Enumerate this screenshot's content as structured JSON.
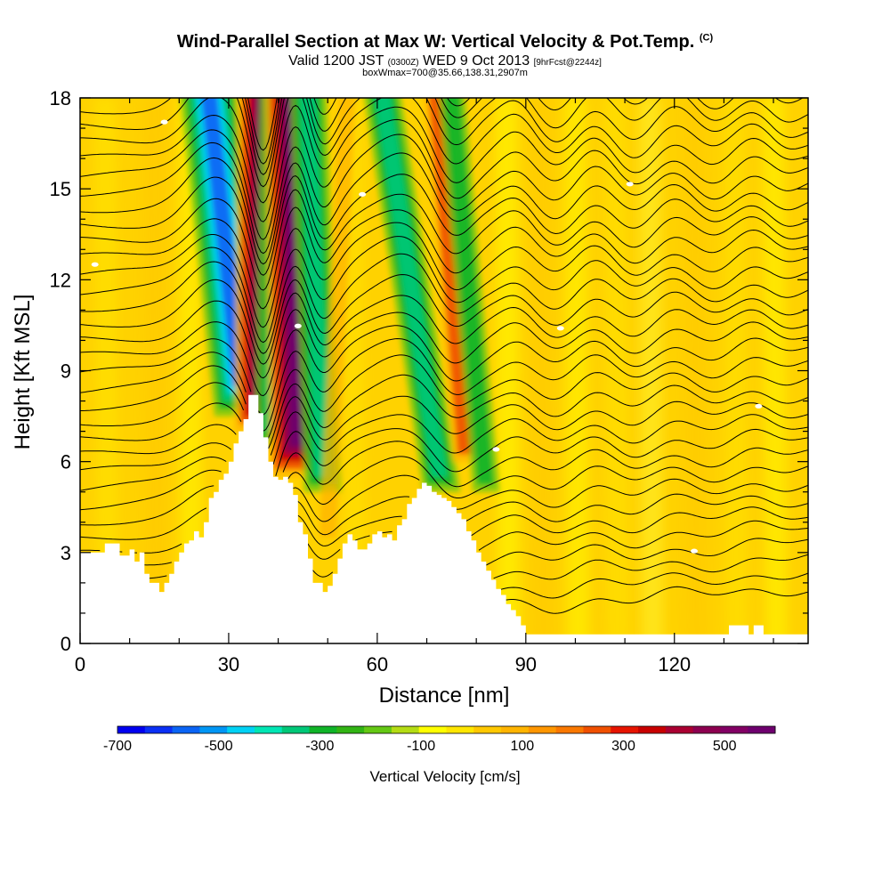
{
  "title": {
    "main": "Wind-Parallel Section at Max W: Vertical Velocity & Pot.Temp.",
    "copyright": "(C)",
    "line2_a": "Valid 1200 JST",
    "line2_b": "(0300Z)",
    "line2_c": "WED 9 Oct 2013",
    "line2_d": "[9hrFcst@2244z]",
    "line3": "boxWmax=700@35.66,138.31,2907m"
  },
  "chart_data": {
    "type": "heatmap",
    "xlabel": "Distance [nm]",
    "ylabel": "Height [Kft MSL]",
    "xlim": [
      0,
      147
    ],
    "ylim": [
      0,
      18
    ],
    "x_ticks": [
      0,
      30,
      60,
      90,
      120
    ],
    "y_ticks": [
      0,
      3,
      6,
      9,
      12,
      15,
      18
    ],
    "field": "Vertical Velocity [cm/s]",
    "contours": "Pot.Temp.",
    "terrain": {
      "x": [
        0,
        4,
        5,
        7,
        8,
        10,
        11,
        12,
        13,
        14,
        16,
        17,
        18,
        19,
        20,
        21,
        22,
        23,
        24,
        25,
        26,
        27,
        28,
        29,
        30,
        31,
        32,
        33,
        34,
        35,
        36,
        37,
        38,
        39,
        40,
        41,
        42,
        43,
        44,
        45,
        46,
        47,
        48,
        49,
        50,
        51,
        52,
        53,
        54,
        55,
        56,
        57,
        58,
        59,
        60,
        61,
        62,
        63,
        64,
        65,
        66,
        67,
        68,
        69,
        70,
        71,
        72,
        73,
        74,
        75,
        76,
        77,
        78,
        79,
        80,
        81,
        82,
        83,
        84,
        85,
        86,
        87,
        88,
        89,
        90,
        92,
        95,
        100,
        105,
        110,
        115,
        120,
        125,
        128,
        130,
        131,
        132,
        134,
        135,
        136,
        137,
        138,
        140,
        145,
        147
      ],
      "y": [
        3.0,
        3.0,
        3.3,
        3.3,
        2.9,
        3.1,
        2.7,
        3.0,
        2.3,
        2.0,
        1.7,
        2.0,
        2.3,
        2.7,
        3.0,
        3.3,
        3.4,
        3.7,
        3.5,
        4.0,
        4.8,
        5.0,
        5.4,
        5.6,
        6.0,
        6.6,
        7.0,
        7.4,
        8.2,
        8.2,
        7.6,
        6.8,
        6.0,
        5.5,
        5.4,
        5.5,
        5.3,
        4.9,
        4.0,
        3.6,
        2.8,
        2.0,
        2.0,
        1.7,
        1.9,
        2.3,
        2.8,
        3.3,
        3.6,
        3.4,
        3.1,
        3.1,
        3.3,
        3.6,
        3.7,
        3.5,
        3.6,
        3.4,
        3.9,
        4.1,
        4.6,
        4.8,
        5.1,
        5.3,
        5.2,
        5.0,
        4.9,
        4.8,
        4.7,
        4.5,
        4.3,
        4.1,
        3.7,
        3.4,
        3.0,
        2.7,
        2.4,
        2.1,
        1.8,
        1.6,
        1.3,
        1.1,
        0.9,
        0.6,
        0.3,
        0.3,
        0.3,
        0.3,
        0.3,
        0.3,
        0.3,
        0.3,
        0.3,
        0.3,
        0.3,
        0.6,
        0.6,
        0.6,
        0.3,
        0.6,
        0.6,
        0.3,
        0.3,
        0.3,
        0.3
      ]
    },
    "updraft_bands": [
      {
        "kind": "down",
        "x_bottom": 33,
        "x_top": 26,
        "y_bottom": 7.5,
        "strength": 1.0
      },
      {
        "kind": "up",
        "x_bottom": 37,
        "x_top": 37.5,
        "y_bottom": 7.0,
        "strength": 1.0
      },
      {
        "kind": "down",
        "x_bottom": 40,
        "x_top": 41,
        "y_bottom": 6.5,
        "strength": 0.8
      },
      {
        "kind": "up",
        "x_bottom": 44,
        "x_top": 43,
        "y_bottom": 5.5,
        "strength": 1.0
      },
      {
        "kind": "down",
        "x_bottom": 49,
        "x_top": 46,
        "y_bottom": 5.0,
        "strength": 0.6
      },
      {
        "kind": "up",
        "x_bottom": 50,
        "x_top": 54,
        "y_bottom": 3.5,
        "strength": 0.25
      },
      {
        "kind": "down",
        "x_bottom": 73,
        "x_top": 61,
        "y_bottom": 5.0,
        "strength": 0.5
      },
      {
        "kind": "up",
        "x_bottom": 78,
        "x_top": 72,
        "y_bottom": 6.0,
        "strength": 0.45
      },
      {
        "kind": "down",
        "x_bottom": 82,
        "x_top": 75,
        "y_bottom": 5.0,
        "strength": 0.3
      }
    ],
    "colorbar": {
      "label": "Vertical Velocity [cm/s]",
      "tick_labels": [
        "-700",
        "-500",
        "-300",
        "-100",
        "100",
        "300",
        "500"
      ],
      "colors": [
        "#0000f0",
        "#0a30f5",
        "#0a64f5",
        "#0096f5",
        "#00d2f5",
        "#00e6b4",
        "#00c878",
        "#10b428",
        "#32b414",
        "#64c814",
        "#b4dc14",
        "#ffff00",
        "#ffe600",
        "#ffc800",
        "#ffb400",
        "#ff9600",
        "#fa7800",
        "#f05000",
        "#e61400",
        "#c80000",
        "#aa0032",
        "#8c0050",
        "#820064",
        "#6e006e"
      ]
    }
  }
}
